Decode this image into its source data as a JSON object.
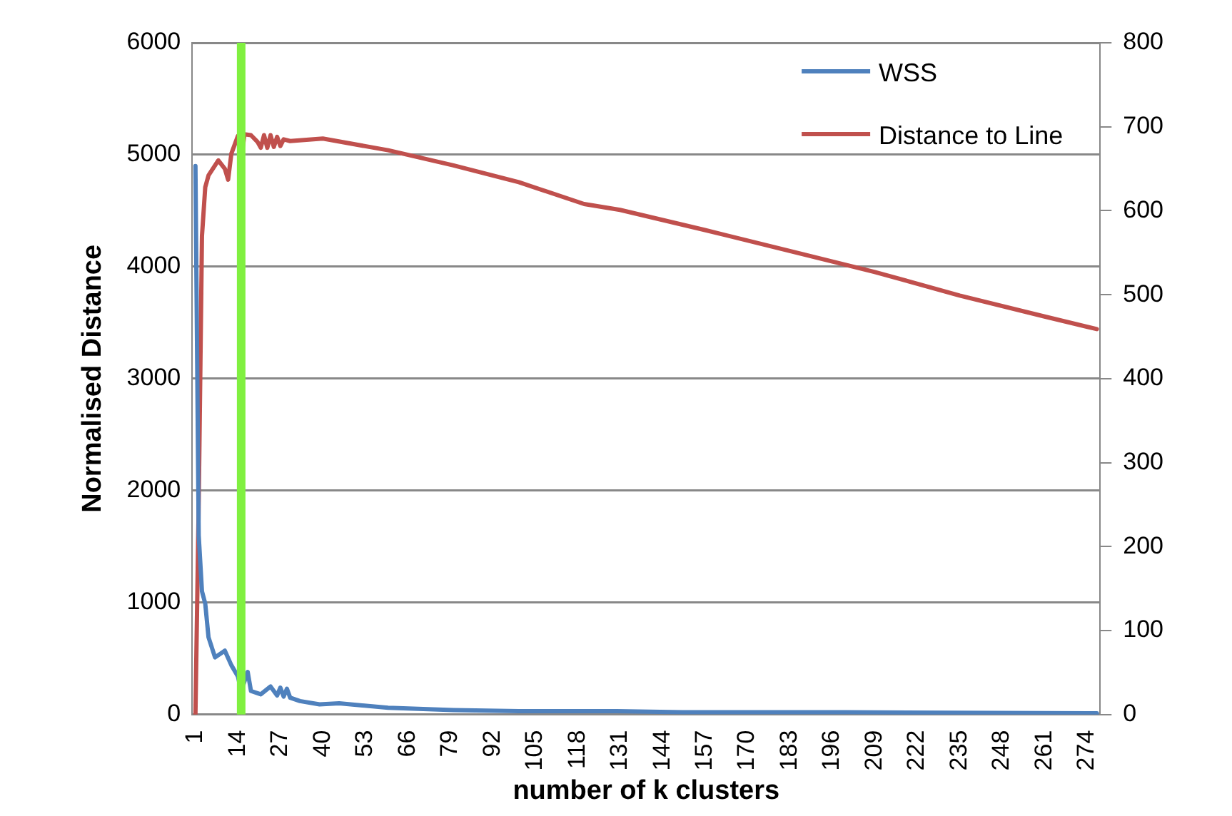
{
  "chart_data": {
    "type": "line",
    "xlabel": "number of k clusters",
    "ylabel": "Normalised Distance",
    "xlim": [
      0,
      278
    ],
    "xticks": [
      1,
      14,
      27,
      40,
      53,
      66,
      79,
      92,
      105,
      118,
      131,
      144,
      157,
      170,
      183,
      196,
      209,
      222,
      235,
      248,
      261,
      274
    ],
    "ylim": [
      0,
      6000
    ],
    "yticks": [
      0,
      1000,
      2000,
      3000,
      4000,
      5000,
      6000
    ],
    "y2lim": [
      0,
      800
    ],
    "y2ticks": [
      0,
      100,
      200,
      300,
      400,
      500,
      600,
      700,
      800
    ],
    "grid": "y",
    "legend": "top right",
    "marker": "none",
    "line_style": "solid",
    "ref_lines": [
      {
        "axis": "x",
        "value": 15,
        "color": "#80f040"
      }
    ],
    "series": [
      {
        "name": "WSS",
        "color": "#4f81bd",
        "x": [
          1,
          2,
          3,
          4,
          5,
          7,
          10,
          12,
          14,
          15,
          17,
          18,
          21,
          24,
          26,
          27,
          28,
          29,
          30,
          33,
          39,
          45,
          60,
          80,
          100,
          130,
          150,
          200,
          277
        ],
        "values": [
          4900,
          1600,
          1100,
          990,
          690,
          510,
          570,
          440,
          340,
          210,
          380,
          210,
          180,
          250,
          170,
          240,
          160,
          230,
          150,
          120,
          90,
          100,
          60,
          40,
          30,
          30,
          20,
          20,
          10
        ]
      },
      {
        "name": "Distance to Line",
        "color": "#c0504d",
        "axis": "y2",
        "x": [
          1,
          2,
          3,
          4,
          5,
          7,
          8,
          10,
          11,
          12,
          14,
          15,
          16,
          18,
          20,
          21,
          22,
          23,
          24,
          25,
          26,
          27,
          28,
          30,
          40,
          60,
          80,
          100,
          120,
          131,
          157,
          183,
          209,
          235,
          261,
          277
        ],
        "values": [
          0,
          250,
          570,
          628,
          642,
          654,
          660,
          650,
          637,
          668,
          689,
          660,
          691,
          690,
          682,
          675,
          690,
          675,
          690,
          676,
          688,
          677,
          685,
          683,
          686,
          672,
          654,
          634,
          608,
          601,
          577,
          552,
          527,
          499,
          474,
          459
        ]
      }
    ]
  }
}
